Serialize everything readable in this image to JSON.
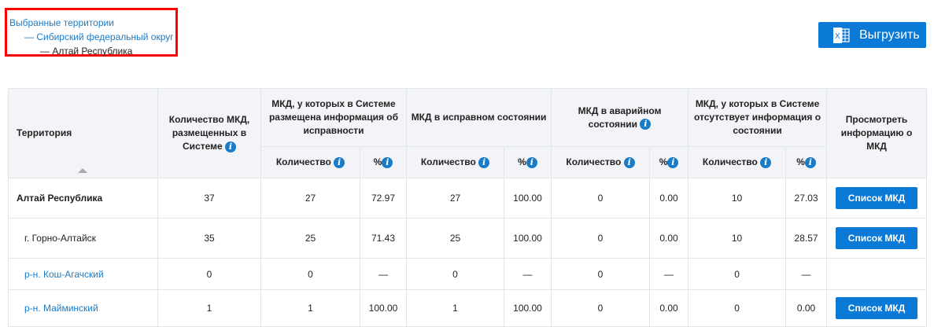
{
  "breadcrumb": {
    "root": "Выбранные территории",
    "district": "— Сибирский федеральный округ",
    "region": "— Алтай Республика"
  },
  "export_label": "Выгрузить",
  "colors": {
    "accent": "#0b7ad6",
    "link": "#1a7bc7",
    "highlight_border": "#ff0000"
  },
  "table": {
    "headers": {
      "territory": "Территория",
      "total": "Количество МКД, размещенных в Системе",
      "info": "МКД, у которых в Системе размещена информация об исправности",
      "good": "МКД в исправном состоянии",
      "emergency": "МКД в аварийном состоянии",
      "noinfo": "МКД, у которых в Системе отсутствует информация о состоянии",
      "view": "Просмотреть информацию о МКД",
      "count": "Количество",
      "pct": "%"
    },
    "rows": [
      {
        "name": "Алтай Республика",
        "bold": true,
        "link": false,
        "total": "37",
        "info_n": "27",
        "info_p": "72.97",
        "good_n": "27",
        "good_p": "100.00",
        "em_n": "0",
        "em_p": "0.00",
        "no_n": "10",
        "no_p": "27.03",
        "button": "Список МКД"
      },
      {
        "name": "г. Горно-Алтайск",
        "bold": false,
        "link": false,
        "total": "35",
        "info_n": "25",
        "info_p": "71.43",
        "good_n": "25",
        "good_p": "100.00",
        "em_n": "0",
        "em_p": "0.00",
        "no_n": "10",
        "no_p": "28.57",
        "button": "Список МКД"
      },
      {
        "name": "р-н. Кош-Агачский",
        "bold": false,
        "link": true,
        "total": "0",
        "info_n": "0",
        "info_p": "—",
        "good_n": "0",
        "good_p": "—",
        "em_n": "0",
        "em_p": "—",
        "no_n": "0",
        "no_p": "—",
        "button": ""
      },
      {
        "name": "р-н. Майминский",
        "bold": false,
        "link": true,
        "total": "1",
        "info_n": "1",
        "info_p": "100.00",
        "good_n": "1",
        "good_p": "100.00",
        "em_n": "0",
        "em_p": "0.00",
        "no_n": "0",
        "no_p": "0.00",
        "button": "Список МКД"
      }
    ]
  }
}
